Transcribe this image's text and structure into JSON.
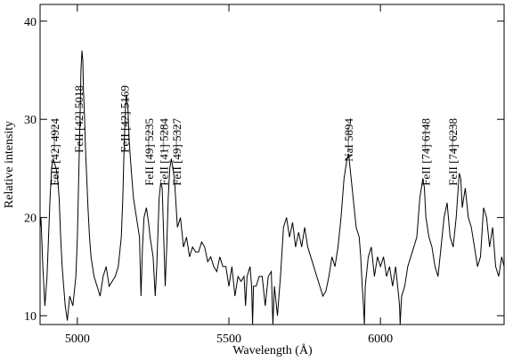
{
  "chart_data": {
    "type": "line",
    "x_label": "Wavelength  (Å)",
    "y_label": "Relative intensity",
    "xlim": [
      4877,
      6408
    ],
    "ylim": [
      9.1,
      41.7
    ],
    "xticks": [
      5000,
      5500,
      6000
    ],
    "yticks": [
      10,
      20,
      30,
      40
    ],
    "grid": false,
    "annotations": [
      {
        "text": "FeII [42] 4924",
        "x": 4924,
        "tick": true
      },
      {
        "text": "FeII [42] 5018",
        "x": 5018,
        "tick": false
      },
      {
        "text": "FeII [42] 5169",
        "x": 5169,
        "tick": false
      },
      {
        "text": "FeII [49] 5235",
        "x": 5235,
        "tick": true
      },
      {
        "text": "FeII [41] 5284",
        "x": 5284,
        "tick": true
      },
      {
        "text": "FeII [49] 5327",
        "x": 5327,
        "tick": true
      },
      {
        "text": "NaI 5894",
        "x": 5894,
        "tick": true
      },
      {
        "text": "FeII [74] 6148",
        "x": 6148,
        "tick": true
      },
      {
        "text": "FeII [74] 6238",
        "x": 6238,
        "tick": true
      }
    ],
    "series": [
      {
        "color": "#000000",
        "x": [
          4877,
          4880,
          4886,
          4893,
          4900,
          4905,
          4910,
          4915,
          4920,
          4925,
          4930,
          4935,
          4940,
          4945,
          4950,
          4955,
          4960,
          4967,
          4975,
          4985,
          4995,
          5000,
          5005,
          5010,
          5012,
          5015,
          5018,
          5020,
          5024,
          5027,
          5031,
          5035,
          5040,
          5045,
          5055,
          5065,
          5075,
          5085,
          5095,
          5105,
          5115,
          5125,
          5135,
          5145,
          5150,
          5155,
          5160,
          5162,
          5167,
          5171,
          5175,
          5180,
          5185,
          5195,
          5200,
          5205,
          5210,
          5215,
          5220,
          5228,
          5235,
          5240,
          5250,
          5257,
          5262,
          5270,
          5275,
          5280,
          5285,
          5290,
          5295,
          5300,
          5305,
          5310,
          5315,
          5320,
          5330,
          5340,
          5350,
          5360,
          5370,
          5380,
          5390,
          5400,
          5410,
          5420,
          5430,
          5440,
          5450,
          5460,
          5470,
          5480,
          5490,
          5500,
          5510,
          5520,
          5530,
          5540,
          5550,
          5555,
          5560,
          5570,
          5575,
          5578,
          5581,
          5590,
          5600,
          5610,
          5620,
          5630,
          5640,
          5645,
          5650,
          5660,
          5670,
          5680,
          5690,
          5700,
          5710,
          5720,
          5730,
          5740,
          5750,
          5760,
          5770,
          5780,
          5790,
          5800,
          5810,
          5820,
          5830,
          5840,
          5850,
          5860,
          5870,
          5880,
          5890,
          5895,
          5900,
          5910,
          5920,
          5930,
          5935,
          5940,
          5944,
          5947,
          5950,
          5960,
          5970,
          5980,
          5990,
          6000,
          6010,
          6020,
          6030,
          6040,
          6050,
          6060,
          6063,
          6065,
          6068,
          6070,
          6080,
          6090,
          6100,
          6110,
          6120,
          6130,
          6140,
          6145,
          6150,
          6160,
          6170,
          6180,
          6190,
          6200,
          6210,
          6220,
          6230,
          6240,
          6250,
          6260,
          6265,
          6270,
          6280,
          6290,
          6300,
          6310,
          6320,
          6330,
          6340,
          6350,
          6360,
          6370,
          6380,
          6390,
          6400,
          6408
        ],
        "values": [
          19,
          20,
          15,
          11,
          14,
          18,
          22,
          25,
          26,
          25.5,
          25,
          24,
          22,
          18,
          15,
          13,
          11,
          9.5,
          12,
          11,
          14,
          18,
          25,
          32,
          35,
          37,
          36,
          33,
          30,
          27,
          24,
          21,
          18,
          16,
          14,
          13,
          12,
          14,
          15,
          13,
          13.5,
          14,
          15,
          18,
          22,
          28,
          32,
          32.5,
          31,
          28,
          26,
          24,
          22,
          20,
          19,
          18,
          12,
          17,
          20,
          21,
          19.5,
          18,
          16,
          12,
          15,
          22,
          23.5,
          23,
          18,
          13,
          17,
          22,
          25,
          26,
          25,
          24,
          19,
          20,
          17,
          18,
          16,
          17,
          16.5,
          16.5,
          17.5,
          17,
          15.5,
          16,
          15,
          14.5,
          16,
          15,
          15,
          13,
          15,
          12,
          14,
          13.5,
          14,
          11,
          14,
          15,
          13,
          9.1,
          13,
          13,
          14,
          14,
          11,
          14,
          14.5,
          9.1,
          13,
          10,
          14,
          19,
          20,
          18,
          19.5,
          17,
          18.5,
          17,
          19,
          17,
          16,
          15,
          14,
          13,
          12,
          12.5,
          14,
          16,
          15,
          17,
          20,
          24,
          26,
          26.5,
          25,
          22,
          19,
          18,
          16,
          13,
          11,
          9.1,
          13,
          16,
          17,
          14,
          16,
          15,
          16,
          14,
          15,
          13,
          15,
          12,
          11,
          9.1,
          11,
          12,
          13,
          15,
          16,
          17,
          18,
          22,
          24,
          23,
          20,
          18,
          17,
          15,
          14,
          17,
          20,
          21.5,
          18,
          17,
          20,
          24.5,
          24,
          21,
          23,
          20,
          19,
          17,
          15,
          16,
          21,
          20,
          17,
          19,
          15,
          14,
          16,
          15
        ]
      }
    ]
  }
}
